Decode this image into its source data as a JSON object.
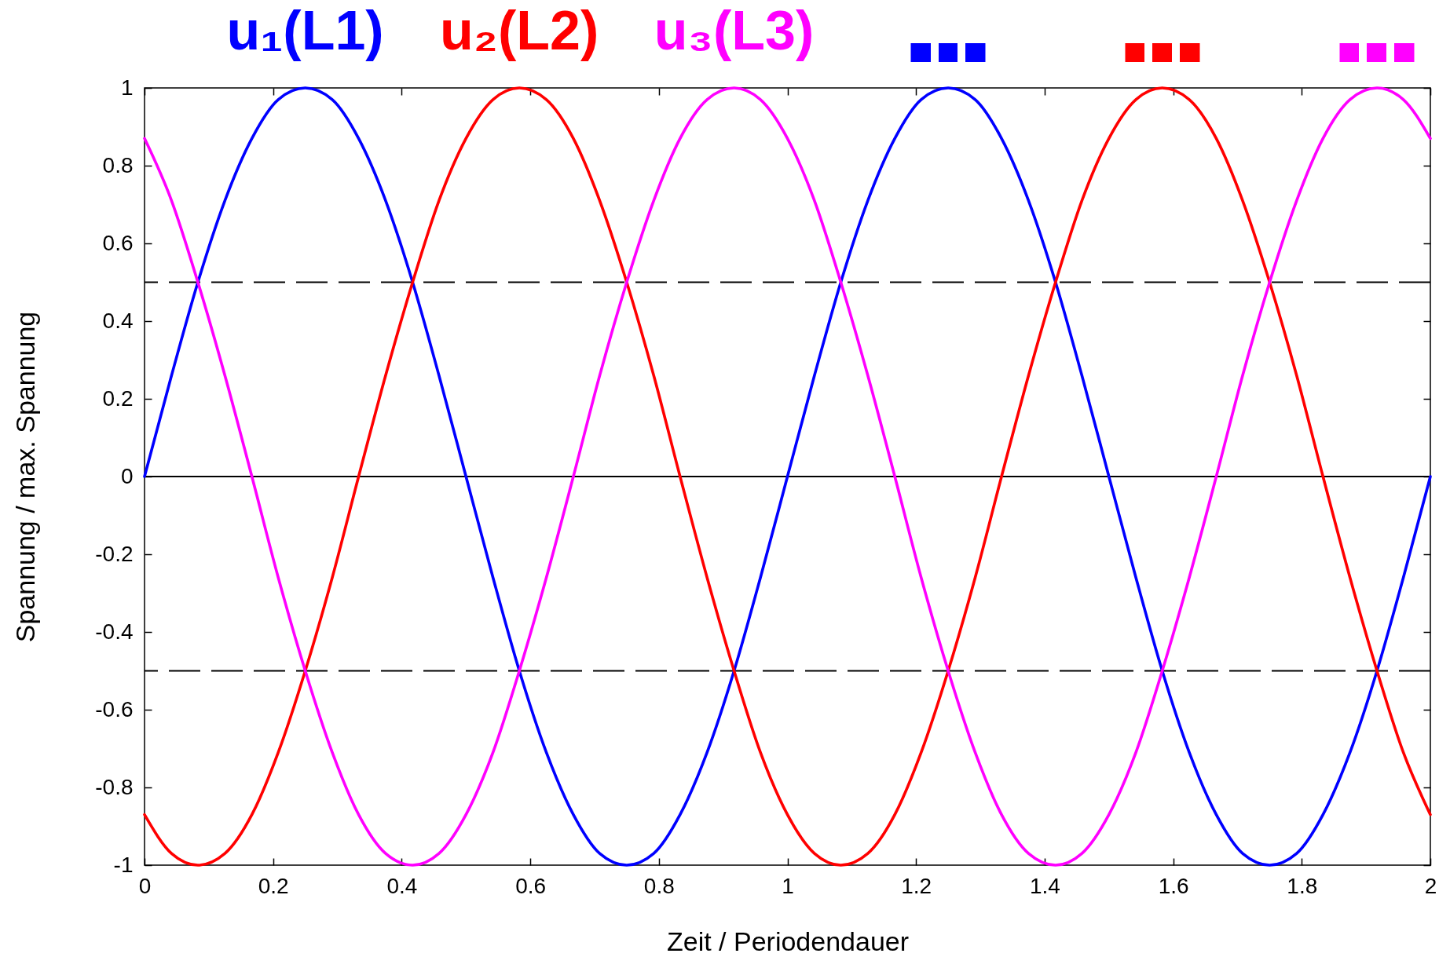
{
  "chart_data": {
    "type": "line",
    "xlabel": "Zeit / Periodendauer",
    "ylabel": "Spannung / max. Spannung",
    "x": [
      0,
      0.042,
      0.083,
      0.125,
      0.167,
      0.208,
      0.25,
      0.292,
      0.333,
      0.375,
      0.417,
      0.458,
      0.5,
      0.542,
      0.583,
      0.625,
      0.667,
      0.708,
      0.75,
      0.792,
      0.833,
      0.875,
      0.917,
      0.958,
      1,
      1.042,
      1.083,
      1.125,
      1.167,
      1.208,
      1.25,
      1.292,
      1.333,
      1.375,
      1.417,
      1.458,
      1.5,
      1.542,
      1.583,
      1.625,
      1.667,
      1.708,
      1.75,
      1.792,
      1.833,
      1.875,
      1.917,
      1.958,
      2
    ],
    "series": [
      {
        "name": "u₁(L1)",
        "color": "#0000ff",
        "values": [
          0,
          0.26,
          0.5,
          0.71,
          0.87,
          0.97,
          1,
          0.97,
          0.87,
          0.71,
          0.5,
          0.26,
          0,
          -0.26,
          -0.5,
          -0.71,
          -0.87,
          -0.97,
          -1,
          -0.97,
          -0.87,
          -0.71,
          -0.5,
          -0.26,
          0,
          0.26,
          0.5,
          0.71,
          0.87,
          0.97,
          1,
          0.97,
          0.87,
          0.71,
          0.5,
          0.26,
          0,
          -0.26,
          -0.5,
          -0.71,
          -0.87,
          -0.97,
          -1,
          -0.97,
          -0.87,
          -0.71,
          -0.5,
          -0.26,
          0
        ]
      },
      {
        "name": "u₂(L2)",
        "color": "#ff0000",
        "values": [
          -0.87,
          -0.97,
          -1,
          -0.97,
          -0.87,
          -0.71,
          -0.5,
          -0.26,
          0,
          0.26,
          0.5,
          0.71,
          0.87,
          0.97,
          1,
          0.97,
          0.87,
          0.71,
          0.5,
          0.26,
          0,
          -0.26,
          -0.5,
          -0.71,
          -0.87,
          -0.97,
          -1,
          -0.97,
          -0.87,
          -0.71,
          -0.5,
          -0.26,
          0,
          0.26,
          0.5,
          0.71,
          0.87,
          0.97,
          1,
          0.97,
          0.87,
          0.71,
          0.5,
          0.26,
          0,
          -0.26,
          -0.5,
          -0.71,
          -0.87
        ]
      },
      {
        "name": "u₃(L3)",
        "color": "#ff00ff",
        "values": [
          0.87,
          0.71,
          0.5,
          0.26,
          0,
          -0.26,
          -0.5,
          -0.71,
          -0.87,
          -0.97,
          -1,
          -0.97,
          -0.87,
          -0.71,
          -0.5,
          -0.26,
          0,
          0.26,
          0.5,
          0.71,
          0.87,
          0.97,
          1,
          0.97,
          0.87,
          0.71,
          0.5,
          0.26,
          0,
          -0.26,
          -0.5,
          -0.71,
          -0.87,
          -0.97,
          -1,
          -0.97,
          -0.87,
          -0.71,
          -0.5,
          -0.26,
          0,
          0.26,
          0.5,
          0.71,
          0.87,
          0.97,
          1,
          0.97,
          0.87
        ]
      }
    ],
    "xlim": [
      0,
      2
    ],
    "ylim": [
      -1,
      1
    ],
    "xticks": [
      0,
      0.2,
      0.4,
      0.6,
      0.8,
      1,
      1.2,
      1.4,
      1.6,
      1.8,
      2
    ],
    "yticks": [
      -1,
      -0.8,
      -0.6,
      -0.4,
      -0.2,
      0,
      0.2,
      0.4,
      0.6,
      0.8,
      1
    ],
    "ref_lines": [
      {
        "axis": "y",
        "value": 0.5,
        "color": "#000000",
        "line_style": "dashed"
      },
      {
        "axis": "y",
        "value": -0.5,
        "color": "#000000",
        "line_style": "dashed"
      },
      {
        "axis": "y",
        "value": 0,
        "color": "#000000",
        "line_style": "solid"
      }
    ],
    "legend": "top"
  }
}
